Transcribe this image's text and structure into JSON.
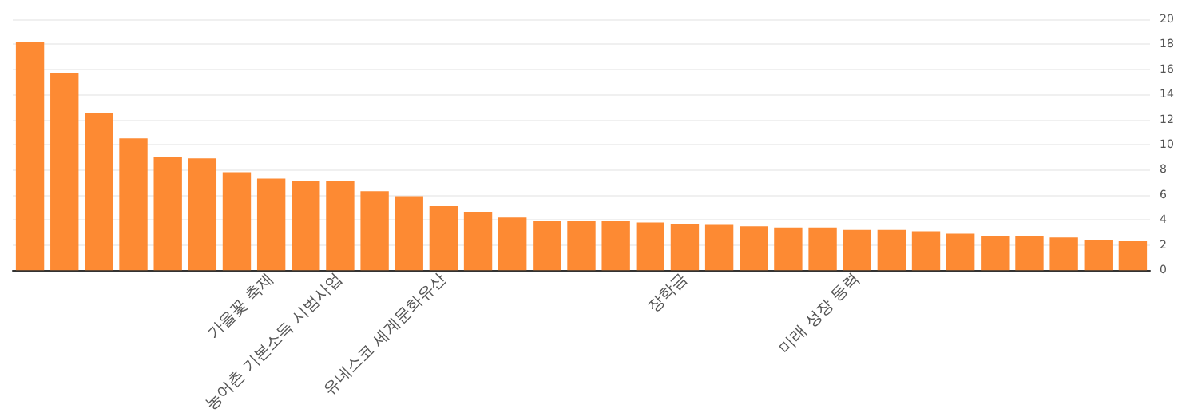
{
  "chart_data": {
    "type": "bar",
    "categories": [
      null,
      null,
      null,
      null,
      null,
      null,
      null,
      "가을꽃 축제",
      null,
      "농어촌 기본소득 시범사업",
      null,
      null,
      "유네스코 세계문화유산",
      null,
      null,
      null,
      null,
      null,
      null,
      "장학금",
      null,
      null,
      null,
      null,
      "미래 성장 동력",
      null,
      null,
      null,
      null,
      null,
      null,
      null,
      null
    ],
    "values": [
      18.2,
      15.7,
      12.5,
      10.5,
      9.0,
      8.9,
      7.8,
      7.3,
      7.1,
      7.1,
      6.3,
      5.9,
      5.1,
      4.6,
      4.2,
      3.9,
      3.9,
      3.9,
      3.8,
      3.7,
      3.6,
      3.5,
      3.4,
      3.4,
      3.2,
      3.2,
      3.1,
      2.9,
      2.7,
      2.7,
      2.6,
      2.4,
      2.3
    ],
    "color": "#fd8a33",
    "ylim": [
      0,
      20
    ],
    "yticks": [
      0,
      2,
      4,
      6,
      8,
      10,
      12,
      14,
      16,
      18,
      20
    ],
    "grid": "y"
  }
}
